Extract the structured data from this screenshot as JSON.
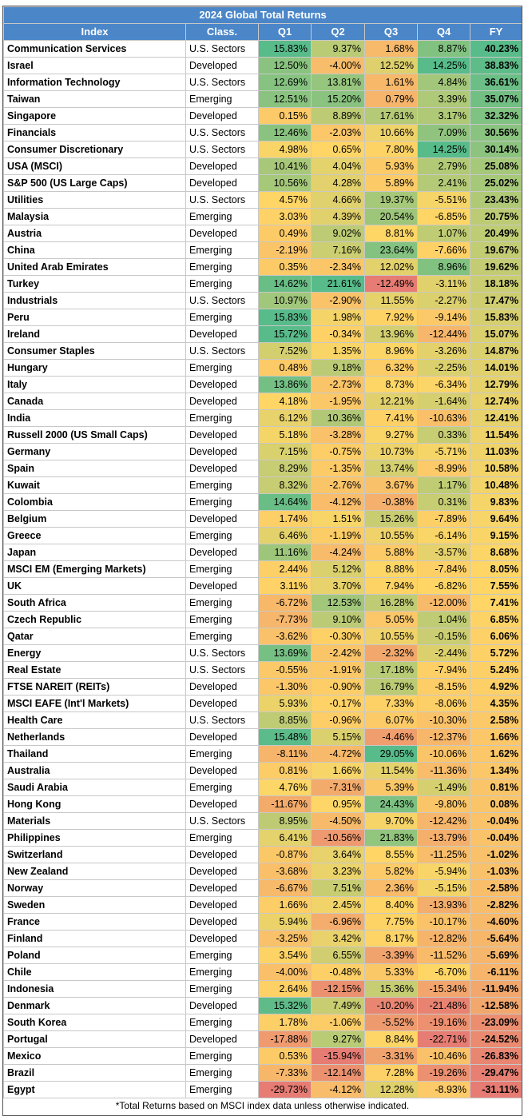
{
  "table": {
    "title": "2024 Global Total Returns",
    "header": [
      "Index",
      "Class.",
      "Q1",
      "Q2",
      "Q3",
      "Q4",
      "FY"
    ],
    "rows": [
      [
        "Communication Services",
        "U.S. Sectors",
        "15.83%",
        "9.37%",
        "1.68%",
        "8.87%",
        "40.23%"
      ],
      [
        "Israel",
        "Developed",
        "12.50%",
        "-4.00%",
        "12.52%",
        "14.25%",
        "38.83%"
      ],
      [
        "Information Technology",
        "U.S. Sectors",
        "12.69%",
        "13.81%",
        "1.61%",
        "4.84%",
        "36.61%"
      ],
      [
        "Taiwan",
        "Emerging",
        "12.51%",
        "15.20%",
        "0.79%",
        "3.39%",
        "35.07%"
      ],
      [
        "Singapore",
        "Developed",
        "0.15%",
        "8.89%",
        "17.61%",
        "3.17%",
        "32.32%"
      ],
      [
        "Financials",
        "U.S. Sectors",
        "12.46%",
        "-2.03%",
        "10.66%",
        "7.09%",
        "30.56%"
      ],
      [
        "Consumer Discretionary",
        "U.S. Sectors",
        "4.98%",
        "0.65%",
        "7.80%",
        "14.25%",
        "30.14%"
      ],
      [
        "USA (MSCI)",
        "Developed",
        "10.41%",
        "4.04%",
        "5.93%",
        "2.79%",
        "25.08%"
      ],
      [
        "S&P 500 (US Large Caps)",
        "Developed",
        "10.56%",
        "4.28%",
        "5.89%",
        "2.41%",
        "25.02%"
      ],
      [
        "Utilities",
        "U.S. Sectors",
        "4.57%",
        "4.66%",
        "19.37%",
        "-5.51%",
        "23.43%"
      ],
      [
        "Malaysia",
        "Emerging",
        "3.03%",
        "4.39%",
        "20.54%",
        "-6.85%",
        "20.75%"
      ],
      [
        "Austria",
        "Developed",
        "0.49%",
        "9.02%",
        "8.81%",
        "1.07%",
        "20.49%"
      ],
      [
        "China",
        "Emerging",
        "-2.19%",
        "7.16%",
        "23.64%",
        "-7.66%",
        "19.67%"
      ],
      [
        "United Arab Emirates",
        "Emerging",
        "0.35%",
        "-2.34%",
        "12.02%",
        "8.96%",
        "19.62%"
      ],
      [
        "Turkey",
        "Emerging",
        "14.62%",
        "21.61%",
        "-12.49%",
        "-3.11%",
        "18.18%"
      ],
      [
        "Industrials",
        "U.S. Sectors",
        "10.97%",
        "-2.90%",
        "11.55%",
        "-2.27%",
        "17.47%"
      ],
      [
        "Peru",
        "Emerging",
        "15.83%",
        "1.98%",
        "7.92%",
        "-9.14%",
        "15.83%"
      ],
      [
        "Ireland",
        "Developed",
        "15.72%",
        "-0.34%",
        "13.96%",
        "-12.44%",
        "15.07%"
      ],
      [
        "Consumer Staples",
        "U.S. Sectors",
        "7.52%",
        "1.35%",
        "8.96%",
        "-3.26%",
        "14.87%"
      ],
      [
        "Hungary",
        "Emerging",
        "0.48%",
        "9.18%",
        "6.32%",
        "-2.25%",
        "14.01%"
      ],
      [
        "Italy",
        "Developed",
        "13.86%",
        "-2.73%",
        "8.73%",
        "-6.34%",
        "12.79%"
      ],
      [
        "Canada",
        "Developed",
        "4.18%",
        "-1.95%",
        "12.21%",
        "-1.64%",
        "12.74%"
      ],
      [
        "India",
        "Emerging",
        "6.12%",
        "10.36%",
        "7.41%",
        "-10.63%",
        "12.41%"
      ],
      [
        "Russell 2000 (US Small Caps)",
        "Developed",
        "5.18%",
        "-3.28%",
        "9.27%",
        "0.33%",
        "11.54%"
      ],
      [
        "Germany",
        "Developed",
        "7.15%",
        "-0.75%",
        "10.73%",
        "-5.71%",
        "11.03%"
      ],
      [
        "Spain",
        "Developed",
        "8.29%",
        "-1.35%",
        "13.74%",
        "-8.99%",
        "10.58%"
      ],
      [
        "Kuwait",
        "Emerging",
        "8.32%",
        "-2.76%",
        "3.67%",
        "1.17%",
        "10.48%"
      ],
      [
        "Colombia",
        "Emerging",
        "14.64%",
        "-4.12%",
        "-0.38%",
        "0.31%",
        "9.83%"
      ],
      [
        "Belgium",
        "Developed",
        "1.74%",
        "1.51%",
        "15.26%",
        "-7.89%",
        "9.64%"
      ],
      [
        "Greece",
        "Emerging",
        "6.46%",
        "-1.19%",
        "10.55%",
        "-6.14%",
        "9.15%"
      ],
      [
        "Japan",
        "Developed",
        "11.16%",
        "-4.24%",
        "5.88%",
        "-3.57%",
        "8.68%"
      ],
      [
        "MSCI EM (Emerging Markets)",
        "Emerging",
        "2.44%",
        "5.12%",
        "8.88%",
        "-7.84%",
        "8.05%"
      ],
      [
        "UK",
        "Developed",
        "3.11%",
        "3.70%",
        "7.94%",
        "-6.82%",
        "7.55%"
      ],
      [
        "South Africa",
        "Emerging",
        "-6.72%",
        "12.53%",
        "16.28%",
        "-12.00%",
        "7.41%"
      ],
      [
        "Czech Republic",
        "Emerging",
        "-7.73%",
        "9.10%",
        "5.05%",
        "1.04%",
        "6.85%"
      ],
      [
        "Qatar",
        "Emerging",
        "-3.62%",
        "-0.30%",
        "10.55%",
        "-0.15%",
        "6.06%"
      ],
      [
        "Energy",
        "U.S. Sectors",
        "13.69%",
        "-2.42%",
        "-2.32%",
        "-2.44%",
        "5.72%"
      ],
      [
        "Real Estate",
        "U.S. Sectors",
        "-0.55%",
        "-1.91%",
        "17.18%",
        "-7.94%",
        "5.24%"
      ],
      [
        "FTSE NAREIT (REITs)",
        "Developed",
        "-1.30%",
        "-0.90%",
        "16.79%",
        "-8.15%",
        "4.92%"
      ],
      [
        "MSCI EAFE (Int'l Markets)",
        "Developed",
        "5.93%",
        "-0.17%",
        "7.33%",
        "-8.06%",
        "4.35%"
      ],
      [
        "Health Care",
        "U.S. Sectors",
        "8.85%",
        "-0.96%",
        "6.07%",
        "-10.30%",
        "2.58%"
      ],
      [
        "Netherlands",
        "Developed",
        "15.48%",
        "5.15%",
        "-4.46%",
        "-12.37%",
        "1.66%"
      ],
      [
        "Thailand",
        "Emerging",
        "-8.11%",
        "-4.72%",
        "29.05%",
        "-10.06%",
        "1.62%"
      ],
      [
        "Australia",
        "Developed",
        "0.81%",
        "1.66%",
        "11.54%",
        "-11.36%",
        "1.34%"
      ],
      [
        "Saudi Arabia",
        "Emerging",
        "4.76%",
        "-7.31%",
        "5.39%",
        "-1.49%",
        "0.81%"
      ],
      [
        "Hong Kong",
        "Developed",
        "-11.67%",
        "0.95%",
        "24.43%",
        "-9.80%",
        "0.08%"
      ],
      [
        "Materials",
        "U.S. Sectors",
        "8.95%",
        "-4.50%",
        "9.70%",
        "-12.42%",
        "-0.04%"
      ],
      [
        "Philippines",
        "Emerging",
        "6.41%",
        "-10.56%",
        "21.83%",
        "-13.79%",
        "-0.04%"
      ],
      [
        "Switzerland",
        "Developed",
        "-0.87%",
        "3.64%",
        "8.55%",
        "-11.25%",
        "-1.02%"
      ],
      [
        "New Zealand",
        "Developed",
        "-3.68%",
        "3.23%",
        "5.82%",
        "-5.94%",
        "-1.03%"
      ],
      [
        "Norway",
        "Developed",
        "-6.67%",
        "7.51%",
        "2.36%",
        "-5.15%",
        "-2.58%"
      ],
      [
        "Sweden",
        "Developed",
        "1.66%",
        "2.45%",
        "8.40%",
        "-13.93%",
        "-2.82%"
      ],
      [
        "France",
        "Developed",
        "5.94%",
        "-6.96%",
        "7.75%",
        "-10.17%",
        "-4.60%"
      ],
      [
        "Finland",
        "Developed",
        "-3.25%",
        "3.42%",
        "8.17%",
        "-12.82%",
        "-5.64%"
      ],
      [
        "Poland",
        "Emerging",
        "3.54%",
        "6.55%",
        "-3.39%",
        "-11.52%",
        "-5.69%"
      ],
      [
        "Chile",
        "Emerging",
        "-4.00%",
        "-0.48%",
        "5.33%",
        "-6.70%",
        "-6.11%"
      ],
      [
        "Indonesia",
        "Emerging",
        "2.64%",
        "-12.15%",
        "15.36%",
        "-15.34%",
        "-11.94%"
      ],
      [
        "Denmark",
        "Developed",
        "15.32%",
        "7.49%",
        "-10.20%",
        "-21.48%",
        "-12.58%"
      ],
      [
        "South Korea",
        "Emerging",
        "1.78%",
        "-1.06%",
        "-5.52%",
        "-19.16%",
        "-23.09%"
      ],
      [
        "Portugal",
        "Developed",
        "-17.88%",
        "9.27%",
        "8.84%",
        "-22.71%",
        "-24.52%"
      ],
      [
        "Mexico",
        "Emerging",
        "0.53%",
        "-15.94%",
        "-3.31%",
        "-10.46%",
        "-26.83%"
      ],
      [
        "Brazil",
        "Emerging",
        "-7.33%",
        "-12.14%",
        "7.28%",
        "-19.26%",
        "-29.47%"
      ],
      [
        "Egypt",
        "Emerging",
        "-29.73%",
        "-4.12%",
        "12.28%",
        "-8.93%",
        "-31.11%"
      ]
    ],
    "footnote": "*Total Returns based on MSCI index data unless otherwise indicated."
  }
}
